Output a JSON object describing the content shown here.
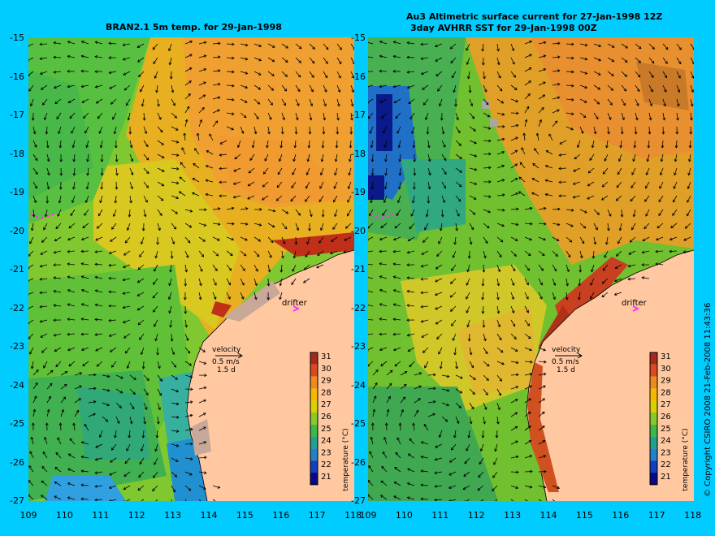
{
  "panels": [
    {
      "title_line1": "BRAN2.1 5m temp. for 29-Jan-1998",
      "title_line2": ""
    },
    {
      "title_line1": "Au3 Altimetric surface current for 27-Jan-1998 12Z",
      "title_line2": "3day AVHRR SST for 29-Jan-1998 00Z"
    }
  ],
  "axes": {
    "y_ticks": [
      "-15",
      "-16",
      "-17",
      "-18",
      "-19",
      "-20",
      "-21",
      "-22",
      "-23",
      "-24",
      "-25",
      "-26",
      "-27"
    ],
    "x_ticks": [
      "109",
      "110",
      "111",
      "112",
      "113",
      "114",
      "115",
      "116",
      "117",
      "118"
    ]
  },
  "annotations": {
    "drifter_label": "drifter",
    "velocity_label": "velocity",
    "velocity_scale": "0.5 m/s",
    "time_scale": "1.5 d"
  },
  "colorbar": {
    "label": "temperature (°C)",
    "ticks": [
      "31",
      "30",
      "29",
      "28",
      "27",
      "26",
      "25",
      "24",
      "23",
      "22",
      "21"
    ],
    "colors": [
      "#a52a1e",
      "#d94a1e",
      "#ee8a1e",
      "#f5b800",
      "#d8d000",
      "#88c828",
      "#3db848",
      "#20a090",
      "#2080c8",
      "#1040c0",
      "#0a0a88"
    ]
  },
  "legend_colors": {
    "land": "#ffc8a0",
    "drifter": "#ff33ff",
    "background": "#00ccff"
  },
  "copyright": "© Copyright CSIRO 2008   21-Feb-2008 11:43:36"
}
